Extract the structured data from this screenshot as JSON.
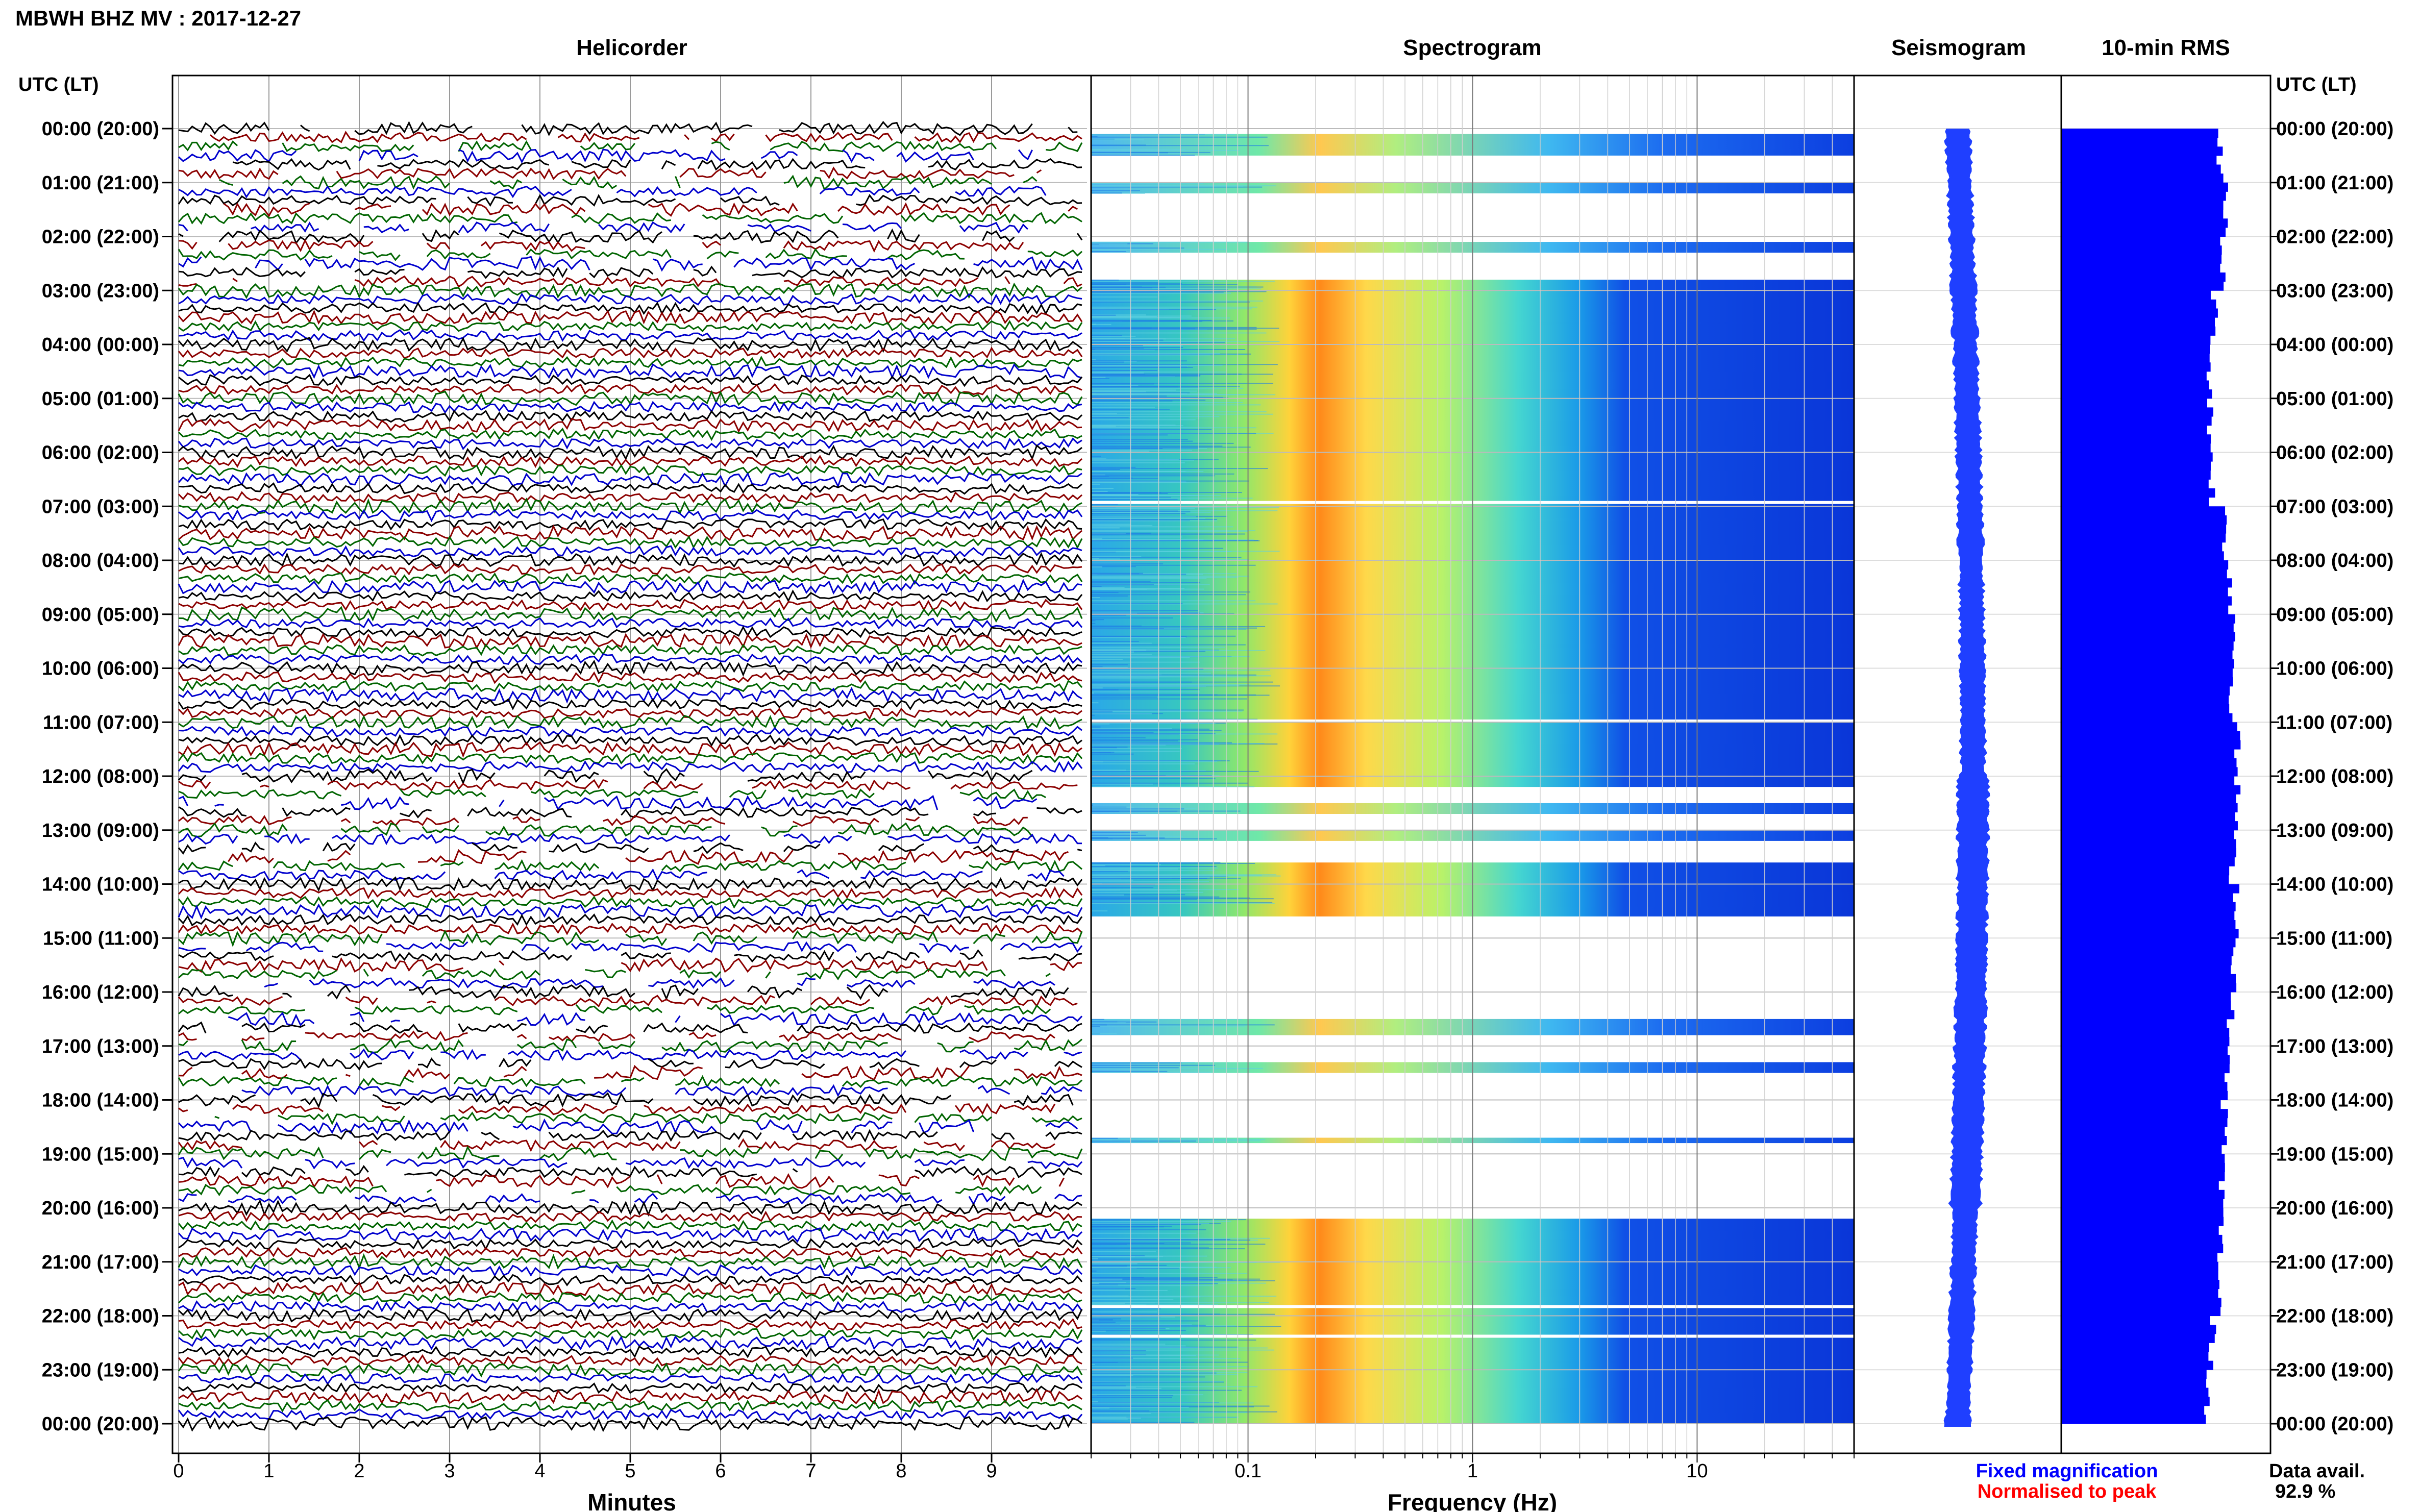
{
  "page_title": "MBWH BHZ MV : 2017-12-27",
  "footer": {
    "legend_fixed": "Fixed magnification",
    "legend_normalised": "Normalised to peak",
    "availability_label": "Data avail.",
    "availability_value": "92.9 %"
  },
  "colors": {
    "fixed": "#0000ff",
    "normalised": "#ff0000",
    "trace_cycle": [
      "#000000",
      "#8b0000",
      "#006400",
      "#0000cd"
    ],
    "seismogram": "#1f3fff",
    "rms": "#0000ff"
  },
  "chart_data": [
    {
      "type": "line",
      "panel": "helicorder",
      "title": "Helicorder",
      "xlabel": "Minutes",
      "ylabel": "UTC (LT)",
      "x_ticks": [
        "0",
        "1",
        "2",
        "3",
        "4",
        "5",
        "6",
        "7",
        "8",
        "9"
      ],
      "xlim": [
        0,
        10
      ],
      "rows_per_hour": 6,
      "row_minutes": 10,
      "y_ticks": [
        "00:00 (20:00)",
        "01:00 (21:00)",
        "02:00 (22:00)",
        "03:00 (23:00)",
        "04:00 (00:00)",
        "05:00 (01:00)",
        "06:00 (02:00)",
        "07:00 (03:00)",
        "08:00 (04:00)",
        "09:00 (05:00)",
        "10:00 (06:00)",
        "11:00 (07:00)",
        "12:00 (08:00)",
        "13:00 (09:00)",
        "14:00 (10:00)",
        "15:00 (11:00)",
        "16:00 (12:00)",
        "17:00 (13:00)",
        "18:00 (14:00)",
        "19:00 (15:00)",
        "20:00 (16:00)",
        "21:00 (17:00)",
        "22:00 (18:00)",
        "23:00 (19:00)",
        "00:00 (20:00)"
      ],
      "gap_hours": [
        0,
        1,
        2,
        12,
        13,
        15,
        16,
        17,
        18,
        19
      ]
    },
    {
      "type": "heatmap",
      "panel": "spectrogram",
      "title": "Spectrogram",
      "xlabel": "Frequency (Hz)",
      "x_scale": "log",
      "xlim": [
        0.02,
        50
      ],
      "x_ticks": [
        "0.1",
        "1",
        "10"
      ],
      "colormap": "jet",
      "peak_band_hz": [
        0.15,
        0.5
      ],
      "data_blocks_hours": [
        [
          0.1,
          0.5
        ],
        [
          1.0,
          1.2
        ],
        [
          2.1,
          2.3
        ],
        [
          2.8,
          12.2
        ],
        [
          12.5,
          12.7
        ],
        [
          13.0,
          13.2
        ],
        [
          13.6,
          14.6
        ],
        [
          16.5,
          16.8
        ],
        [
          17.3,
          17.5
        ],
        [
          18.7,
          18.8
        ],
        [
          20.2,
          24.0
        ]
      ]
    },
    {
      "type": "line",
      "panel": "seismogram",
      "title": "Seismogram",
      "y_ticks_shared": true
    },
    {
      "type": "bar",
      "panel": "rms",
      "title": "10-min RMS",
      "orientation": "horizontal",
      "y_ticks": [
        "00:00 (20:00)",
        "01:00 (21:00)",
        "02:00 (22:00)",
        "03:00 (23:00)",
        "04:00 (00:00)",
        "05:00 (01:00)",
        "06:00 (02:00)",
        "07:00 (03:00)",
        "08:00 (04:00)",
        "09:00 (05:00)",
        "10:00 (06:00)",
        "11:00 (07:00)",
        "12:00 (08:00)",
        "13:00 (09:00)",
        "14:00 (10:00)",
        "15:00 (11:00)",
        "16:00 (12:00)",
        "17:00 (13:00)",
        "18:00 (14:00)",
        "19:00 (15:00)",
        "20:00 (16:00)",
        "21:00 (17:00)",
        "22:00 (18:00)",
        "23:00 (19:00)",
        "00:00 (20:00)"
      ],
      "hourly_rms_relative": [
        0.78,
        0.8,
        0.79,
        0.75,
        0.73,
        0.73,
        0.74,
        0.8,
        0.83,
        0.85,
        0.84,
        0.86,
        0.86,
        0.84,
        0.86,
        0.85,
        0.83,
        0.81,
        0.8,
        0.79,
        0.78,
        0.77,
        0.74,
        0.72
      ]
    }
  ]
}
